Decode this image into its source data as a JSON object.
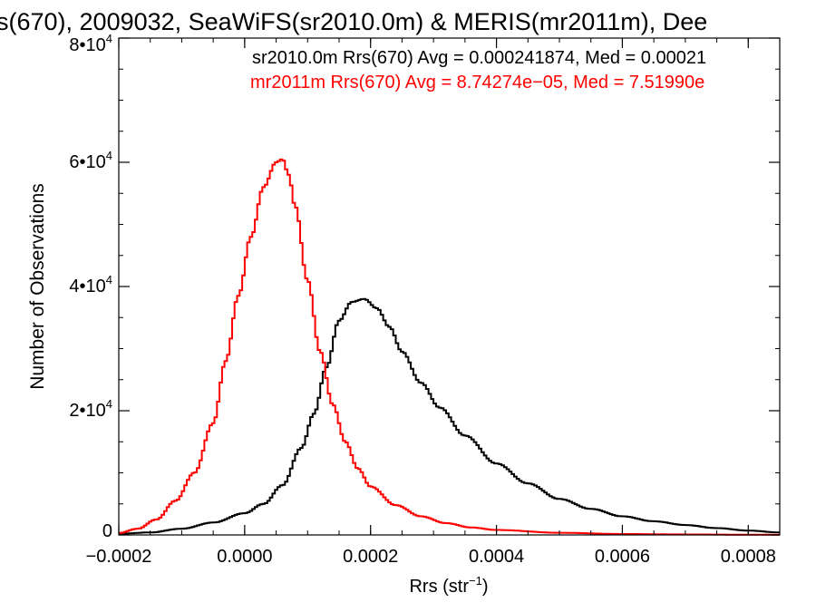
{
  "chart_data": {
    "type": "line",
    "title": "s(670), 2009032, SeaWiFS(sr2010.0m) & MERIS(mr2011m), Dee",
    "xlabel_main": "Rrs (str",
    "xlabel_sup": "−1",
    "xlabel_close": ")",
    "ylabel": "Number of Observations",
    "xlim": [
      -0.0002,
      0.00085
    ],
    "ylim": [
      0,
      80000
    ],
    "x_ticks": [
      {
        "value": -0.0002,
        "label": "−0.0002"
      },
      {
        "value": 0.0,
        "label": "0.0000"
      },
      {
        "value": 0.0002,
        "label": "0.0002"
      },
      {
        "value": 0.0004,
        "label": "0.0004"
      },
      {
        "value": 0.0006,
        "label": "0.0006"
      },
      {
        "value": 0.0008,
        "label": "0.0008"
      }
    ],
    "y_ticks": [
      {
        "value": 0,
        "label": "0",
        "sup": ""
      },
      {
        "value": 20000,
        "label": "2•10",
        "sup": "4"
      },
      {
        "value": 40000,
        "label": "4•10",
        "sup": "4"
      },
      {
        "value": 60000,
        "label": "6•10",
        "sup": "4"
      },
      {
        "value": 80000,
        "label": "8•10",
        "sup": "4"
      }
    ],
    "legend": [
      {
        "text": "sr2010.0m Rrs(670) Avg = 0.000241874, Med = 0.00021",
        "color": "#000000"
      },
      {
        "text": "mr2011m Rrs(670) Avg = 8.74274e−05, Med = 7.51990e",
        "color": "#ff0000"
      }
    ],
    "series": [
      {
        "color": "#000000",
        "x": [
          -0.0002,
          -0.00015,
          -0.0001,
          -5e-05,
          0.0,
          3e-05,
          6e-05,
          9e-05,
          0.00011,
          0.00013,
          0.00015,
          0.00017,
          0.00019,
          0.00021,
          0.00023,
          0.00025,
          0.00028,
          0.00031,
          0.00035,
          0.0004,
          0.00045,
          0.0005,
          0.00055,
          0.0006,
          0.00065,
          0.0007,
          0.00075,
          0.0008,
          0.00085
        ],
        "y": [
          200,
          400,
          1000,
          2000,
          3500,
          5000,
          8000,
          14000,
          19500,
          27000,
          34500,
          37500,
          38000,
          36500,
          33500,
          29500,
          24500,
          20500,
          16000,
          11500,
          8300,
          5800,
          4200,
          3000,
          2200,
          1600,
          1100,
          700,
          400
        ]
      },
      {
        "color": "#ff0000",
        "x": [
          -0.0002,
          -0.00017,
          -0.00014,
          -0.00011,
          -8e-05,
          -5e-05,
          -3e-05,
          -1e-05,
          1e-05,
          3e-05,
          5e-05,
          6e-05,
          7e-05,
          8e-05,
          0.0001,
          0.00012,
          0.00014,
          0.00016,
          0.00018,
          0.0002,
          0.00024,
          0.00028,
          0.00032,
          0.00036,
          0.0004,
          0.0005,
          0.0006,
          0.0007,
          0.0008,
          0.00085
        ],
        "y": [
          300,
          1000,
          2500,
          5500,
          10000,
          18000,
          28000,
          38500,
          48000,
          56000,
          60000,
          60500,
          58000,
          53000,
          41000,
          29500,
          21000,
          15000,
          10700,
          7800,
          4800,
          3000,
          1900,
          1200,
          800,
          350,
          150,
          80,
          40,
          20
        ]
      }
    ]
  }
}
